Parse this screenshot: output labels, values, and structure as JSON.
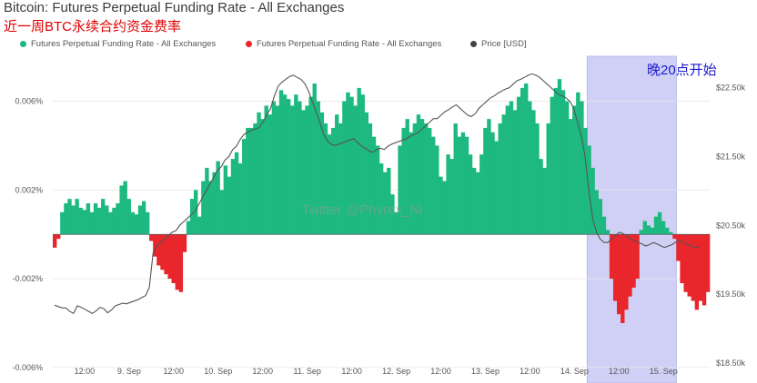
{
  "title": "Bitcoin: Futures Perpetual Funding Rate - All Exchanges",
  "subtitle": "近一周BTC永续合约资金费率",
  "legend": [
    {
      "label": "Futures Perpetual Funding Rate - All Exchanges",
      "color": "#1db980"
    },
    {
      "label": "Futures Perpetual Funding Rate - All Exchanges",
      "color": "#e8262b"
    },
    {
      "label": "Price [USD]",
      "color": "#444444"
    }
  ],
  "watermark": "Twitter @Phyrex_Ni",
  "annotation": "晚20点开始",
  "colors": {
    "positive": "#1db980",
    "negative": "#e8262b",
    "price": "#555555",
    "highlight": "#c8c8f5"
  },
  "chart_data": {
    "type": "bar",
    "x_ticks": [
      "12:00",
      "9. Sep",
      "12:00",
      "10. Sep",
      "12:00",
      "11. Sep",
      "12:00",
      "12. Sep",
      "12:00",
      "13. Sep",
      "12:00",
      "14. Sep",
      "12:00",
      "15. Sep"
    ],
    "y_left": {
      "ticks": [
        "0.006%",
        "0.002%",
        "-0.002%",
        "-0.006%"
      ],
      "range": [
        -0.0058,
        0.0077
      ],
      "unit": "%"
    },
    "y_right": {
      "ticks": [
        "$22.50k",
        "$21.50k",
        "$20.50k",
        "$19.50k",
        "$18.50k"
      ],
      "range": [
        18500,
        22850
      ],
      "unit": "USD"
    },
    "highlight_band": {
      "x_from": 144,
      "x_to": 168
    },
    "funding_rate": [
      -0.0006,
      -0.0002,
      0.001,
      0.0014,
      0.0016,
      0.0013,
      0.0016,
      0.0012,
      0.0011,
      0.0014,
      0.001,
      0.0014,
      0.0012,
      0.0016,
      0.0013,
      0.001,
      0.0012,
      0.0014,
      0.0022,
      0.0024,
      0.0016,
      0.001,
      0.0009,
      0.0013,
      0.0015,
      0.001,
      -0.0003,
      -0.001,
      -0.0014,
      -0.0016,
      -0.0018,
      -0.002,
      -0.0022,
      -0.0025,
      -0.0026,
      -0.0008,
      0.0006,
      0.0016,
      0.002,
      0.0008,
      0.0024,
      0.003,
      0.0024,
      0.0028,
      0.0033,
      0.002,
      0.0031,
      0.0026,
      0.0034,
      0.0037,
      0.0032,
      0.0043,
      0.0048,
      0.0048,
      0.005,
      0.0055,
      0.0052,
      0.0058,
      0.0054,
      0.006,
      0.0058,
      0.0065,
      0.0063,
      0.0061,
      0.0058,
      0.0063,
      0.006,
      0.0056,
      0.0058,
      0.0062,
      0.0068,
      0.006,
      0.0055,
      0.005,
      0.0045,
      0.0048,
      0.0054,
      0.005,
      0.006,
      0.0064,
      0.0062,
      0.0058,
      0.0066,
      0.0063,
      0.0055,
      0.005,
      0.0044,
      0.004,
      0.0032,
      0.0028,
      0.003,
      0.0018,
      0.001,
      0.004,
      0.0048,
      0.0052,
      0.0046,
      0.005,
      0.0054,
      0.0052,
      0.005,
      0.0048,
      0.0044,
      0.004,
      0.0026,
      0.0024,
      0.0036,
      0.0034,
      0.005,
      0.0044,
      0.0046,
      0.0044,
      0.0036,
      0.003,
      0.0028,
      0.0036,
      0.0048,
      0.0052,
      0.0046,
      0.0042,
      0.005,
      0.0054,
      0.0058,
      0.006,
      0.0056,
      0.0062,
      0.0066,
      0.0068,
      0.006,
      0.0056,
      0.005,
      0.0034,
      0.003,
      0.005,
      0.0062,
      0.0066,
      0.007,
      0.0065,
      0.006,
      0.0052,
      0.0058,
      0.0064,
      0.006,
      0.0048,
      0.004,
      0.003,
      0.002,
      0.0016,
      0.0008,
      0.0002,
      -0.002,
      -0.003,
      -0.0036,
      -0.004,
      -0.0034,
      -0.0028,
      -0.0024,
      -0.002,
      0.0002,
      0.0006,
      0.0004,
      0.0003,
      0.0008,
      0.001,
      0.0006,
      0.0003,
      0.0001,
      -0.0002,
      -0.0012,
      -0.0022,
      -0.0026,
      -0.0028,
      -0.003,
      -0.0034,
      -0.003,
      -0.0032,
      -0.0026
    ],
    "price": [
      19340,
      19320,
      19300,
      19300,
      19250,
      19220,
      19330,
      19310,
      19280,
      19250,
      19220,
      19260,
      19310,
      19290,
      19230,
      19270,
      19330,
      19350,
      19370,
      19360,
      19380,
      19400,
      19420,
      19450,
      19480,
      19600,
      20100,
      20200,
      20250,
      20300,
      20350,
      20400,
      20420,
      20500,
      20550,
      20600,
      20650,
      20700,
      20800,
      20900,
      21000,
      21100,
      21200,
      21300,
      21350,
      21450,
      21500,
      21600,
      21650,
      21750,
      21820,
      21850,
      21880,
      21900,
      21920,
      22000,
      22100,
      22200,
      22380,
      22520,
      22580,
      22620,
      22660,
      22680,
      22650,
      22620,
      22560,
      22450,
      22300,
      22150,
      22000,
      21820,
      21720,
      21680,
      21660,
      21680,
      21700,
      21720,
      21740,
      21760,
      21700,
      21650,
      21620,
      21580,
      21560,
      21600,
      21620,
      21600,
      21650,
      21680,
      21700,
      21720,
      21740,
      21760,
      21800,
      21820,
      21850,
      21900,
      21950,
      22000,
      22050,
      22050,
      22100,
      22150,
      22180,
      22220,
      22250,
      22200,
      22150,
      22100,
      22080,
      22120,
      22200,
      22250,
      22300,
      22350,
      22380,
      22420,
      22450,
      22480,
      22500,
      22550,
      22600,
      22620,
      22650,
      22680,
      22700,
      22680,
      22650,
      22600,
      22550,
      22500,
      22450,
      22400,
      22380,
      22350,
      22300,
      22200,
      22000,
      21800,
      21500,
      21000,
      20600,
      20400,
      20300,
      20250,
      20250,
      20300,
      20350,
      20400,
      20380,
      20350,
      20300,
      20280,
      20250,
      20230,
      20200,
      20220,
      20250,
      20230,
      20200,
      20180,
      20200,
      20220,
      20260,
      20280,
      20250,
      20220,
      20200,
      20180,
      20180
    ]
  }
}
